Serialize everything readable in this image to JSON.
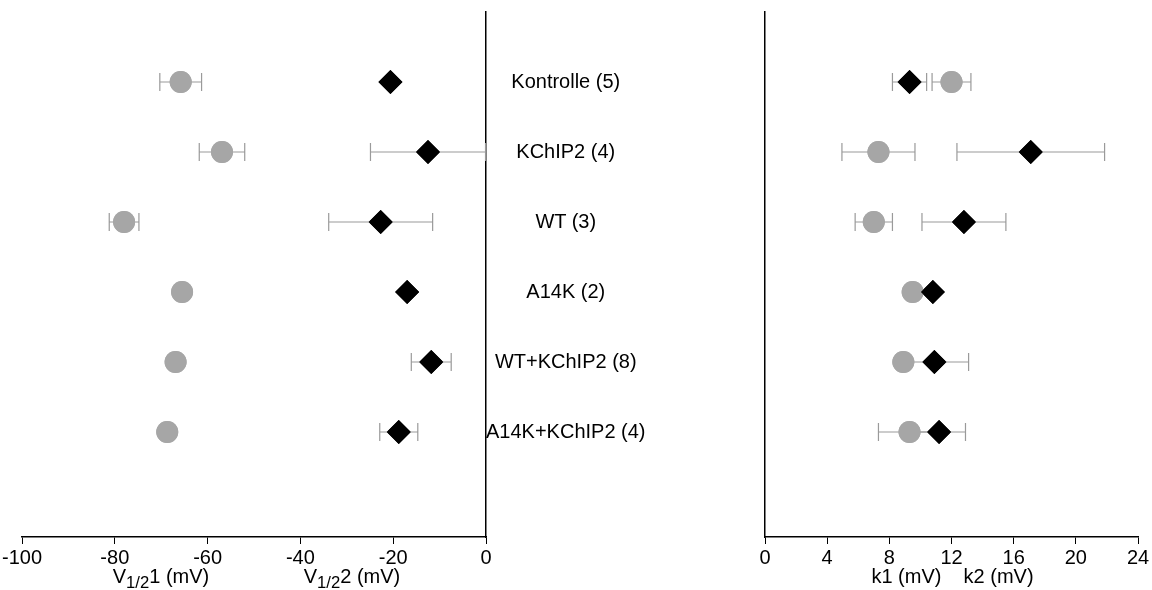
{
  "chart_data": [
    {
      "type": "scatter",
      "orientation": "horizontal",
      "xlabel": "V$_{1/2}$1 (mV)                 V$_{1/2}$2 (mV)",
      "categories": [
        "Kontrolle (5)",
        "KChIP2 (4)",
        "WT (3)",
        "A14K (2)",
        "WT+KChIP2 (8)",
        "A14K+KChIP2 (4)"
      ],
      "xlim": [
        -100,
        0
      ],
      "xticks": [
        -100,
        -80,
        -60,
        -40,
        -20,
        0
      ],
      "legend": false,
      "grid": false,
      "series": [
        {
          "color": "#a6a6a6",
          "marker": "circle",
          "values": [
            -65.8,
            -56.9,
            -78,
            -65.5,
            -66.9,
            -68.7
          ],
          "errors": [
            4.5,
            4.9,
            3.2,
            null,
            null,
            null
          ]
        },
        {
          "color": "#000000",
          "marker": "diamond",
          "values": [
            -20.6,
            -12.5,
            -22.7,
            -17,
            -11.8,
            -18.8
          ],
          "errors": [
            null,
            12.4,
            11.2,
            null,
            4.3,
            4.1
          ]
        }
      ]
    },
    {
      "type": "scatter",
      "orientation": "horizontal",
      "xlabel": "k1 (mV)    k2 (mV)",
      "categories": [
        null,
        null,
        null,
        null,
        null,
        null
      ],
      "tick_labels": "x",
      "xlim": [
        0,
        24
      ],
      "xticks": [
        0,
        4,
        8,
        12,
        16,
        20,
        24
      ],
      "legend": false,
      "grid": false,
      "series": [
        {
          "color": "#a6a6a6",
          "marker": "circle",
          "values": [
            12,
            7.3,
            7,
            9.5,
            8.9,
            9.3
          ],
          "errors": [
            1.25,
            2.35,
            1.2,
            null,
            null,
            2
          ]
        },
        {
          "color": "#000000",
          "marker": "diamond",
          "values": [
            9.3,
            17.1,
            12.8,
            10.8,
            10.9,
            11.2
          ],
          "errors": [
            1.1,
            4.75,
            2.7,
            null,
            2.2,
            1.7
          ]
        }
      ]
    }
  ]
}
